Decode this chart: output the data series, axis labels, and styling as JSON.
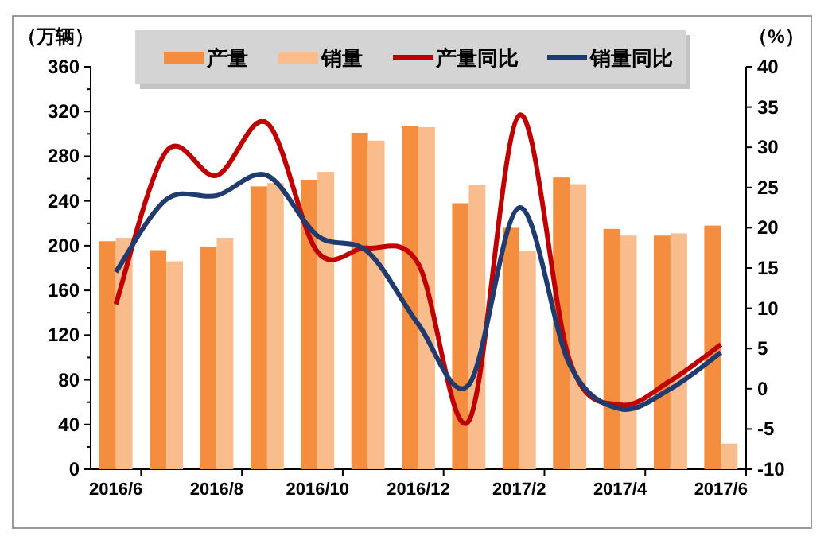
{
  "chart_data": {
    "type": "bar",
    "ylabel": "（万辆）",
    "y2label": "（%）",
    "categories": [
      "2016/6",
      null,
      "2016/8",
      null,
      "2016/10",
      null,
      "2016/12",
      null,
      "2017/2",
      null,
      "2017/4",
      null,
      "2017/6"
    ],
    "series": [
      {
        "name": "产量",
        "color": "#f58d3e",
        "values": [
          204,
          196,
          199,
          253,
          259,
          301,
          307,
          238,
          216,
          261,
          215,
          209,
          218
        ]
      },
      {
        "name": "销量",
        "color": "#f9bc8c",
        "values": [
          207,
          186,
          207,
          256,
          266,
          294,
          306,
          254,
          195,
          255,
          209,
          211,
          23
        ]
      },
      {
        "name": "产量同比",
        "type": "line",
        "axis": "y2",
        "color": "#c00000",
        "values": [
          10.5,
          29.5,
          26.5,
          33,
          17,
          17.5,
          15.5,
          -4,
          34,
          3.5,
          -2,
          1,
          5.5
        ]
      },
      {
        "name": "销量同比",
        "type": "line",
        "axis": "y2",
        "color": "#1f3b70",
        "values": [
          14.5,
          23.5,
          24,
          26.5,
          19,
          17,
          8,
          0.5,
          22.5,
          3,
          -2.5,
          0,
          4.5
        ]
      }
    ],
    "ylim": [
      0,
      360
    ],
    "yticks": [
      0,
      40,
      80,
      120,
      160,
      200,
      240,
      280,
      320,
      360
    ],
    "y2lim": [
      -10,
      40
    ],
    "y2ticks": [
      -10,
      -5,
      0,
      5,
      10,
      15,
      20,
      25,
      30,
      35,
      40
    ],
    "grid": false,
    "legend": "top",
    "marker": "none",
    "line_style": "solid"
  }
}
